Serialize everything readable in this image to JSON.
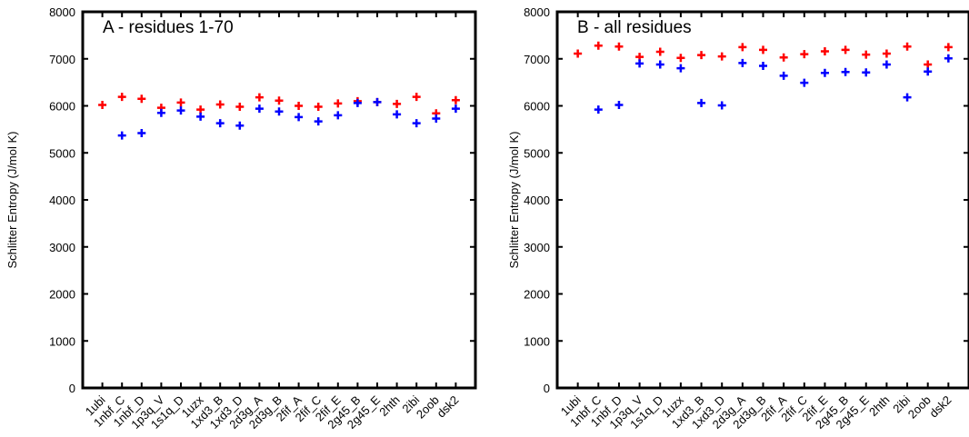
{
  "chart_data": [
    {
      "type": "scatter",
      "title": "A - residues 1-70",
      "ylabel": "Schlitter Entropy (J/mol K)",
      "xlabel": "",
      "ylim": [
        0,
        8000
      ],
      "yticks": [
        0,
        1000,
        2000,
        3000,
        4000,
        5000,
        6000,
        7000,
        8000
      ],
      "grid": false,
      "legend": "none",
      "marker": "+",
      "categories": [
        "1ubi",
        "1nbf_C",
        "1nbf_D",
        "1p3q_V",
        "1s1q_D",
        "1uzx",
        "1xd3_B",
        "1xd3_D",
        "2d3g_A",
        "2d3g_B",
        "2fif_A",
        "2fif_C",
        "2fif_E",
        "2g45_B",
        "2g45_E",
        "2hth",
        "2ibi",
        "2oob",
        "dsk2"
      ],
      "series": [
        {
          "color": "#ff0000",
          "values": [
            6020,
            6190,
            6150,
            5960,
            6070,
            5920,
            6030,
            5980,
            6180,
            6110,
            6000,
            5980,
            6050,
            6100,
            6080,
            6040,
            6190,
            5840,
            6120
          ]
        },
        {
          "color": "#0000ff",
          "values": [
            null,
            5370,
            5420,
            5850,
            5900,
            5770,
            5630,
            5580,
            5940,
            5880,
            5760,
            5670,
            5800,
            6060,
            6080,
            5820,
            5630,
            5730,
            5940
          ]
        }
      ]
    },
    {
      "type": "scatter",
      "title": "B - all residues",
      "ylabel": "Schlitter Entropy (J/mol K)",
      "xlabel": "",
      "ylim": [
        0,
        8000
      ],
      "yticks": [
        0,
        1000,
        2000,
        3000,
        4000,
        5000,
        6000,
        7000,
        8000
      ],
      "grid": false,
      "legend": "none",
      "marker": "+",
      "categories": [
        "1ubi",
        "1nbf_C",
        "1nbf_D",
        "1p3q_V",
        "1s1q_D",
        "1uzx",
        "1xd3_B",
        "1xd3_D",
        "2d3g_A",
        "2d3g_B",
        "2fif_A",
        "2fif_C",
        "2fif_E",
        "2g45_B",
        "2g45_E",
        "2hth",
        "2ibi",
        "2oob",
        "dsk2"
      ],
      "series": [
        {
          "color": "#ff0000",
          "values": [
            7110,
            7280,
            7260,
            7040,
            7150,
            7020,
            7080,
            7050,
            7250,
            7190,
            7030,
            7100,
            7160,
            7190,
            7090,
            7110,
            7260,
            6880,
            7250
          ]
        },
        {
          "color": "#0000ff",
          "values": [
            null,
            5920,
            6020,
            6900,
            6880,
            6800,
            6060,
            6010,
            6910,
            6850,
            6640,
            6490,
            6700,
            6720,
            6710,
            6880,
            6180,
            6730,
            7010
          ]
        }
      ]
    }
  ]
}
